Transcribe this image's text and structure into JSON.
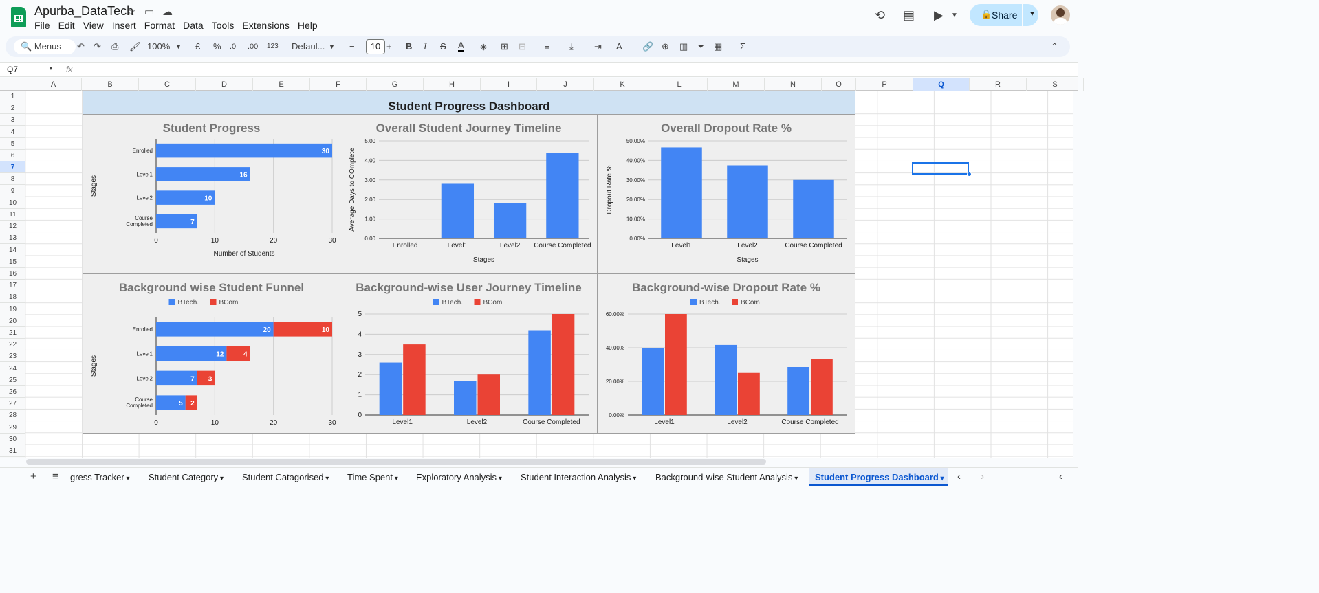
{
  "app": {
    "title": "Apurba_DataTech",
    "menu": [
      "File",
      "Edit",
      "View",
      "Insert",
      "Format",
      "Data",
      "Tools",
      "Extensions",
      "Help"
    ],
    "share_label": "Share"
  },
  "toolbar": {
    "search": "Menus",
    "zoom": "100%",
    "currency": "£",
    "percent": "%",
    "dec_down": ".0",
    "dec_up": ".00",
    "numfmt": "123",
    "font": "Defaul...",
    "font_size": "10"
  },
  "formula": {
    "cell": "Q7",
    "fx": "fx"
  },
  "columns": [
    "A",
    "B",
    "C",
    "D",
    "E",
    "F",
    "G",
    "H",
    "I",
    "J",
    "K",
    "L",
    "M",
    "N",
    "O",
    "P",
    "Q",
    "R",
    "S"
  ],
  "rows": [
    "1",
    "2",
    "3",
    "4",
    "5",
    "6",
    "7",
    "8",
    "9",
    "10",
    "11",
    "12",
    "13",
    "14",
    "15",
    "16",
    "17",
    "18",
    "19",
    "20",
    "21",
    "22",
    "23",
    "24",
    "25",
    "26",
    "27",
    "28",
    "29",
    "30",
    "31"
  ],
  "selected": {
    "col": "Q",
    "row": "7"
  },
  "dashboard_title": "Student Progress Dashboard",
  "tabs": [
    "gress Tracker",
    "Student Category",
    "Student Catagorised",
    "Time Spent",
    "Exploratory Analysis",
    "Student Interaction Analysis",
    "Background-wise Student Analysis",
    "Student Progress Dashboard"
  ],
  "active_tab": "Student Progress Dashboard",
  "colors": {
    "btech": "#4285f4",
    "bcom": "#ea4335",
    "accent": "#0b57d0"
  },
  "chart_data": [
    {
      "id": "c1",
      "type": "bar",
      "orientation": "horizontal",
      "title": "Student Progress",
      "categories": [
        "Enrolled",
        "Level1",
        "Level2",
        "Course Completed"
      ],
      "values": [
        30,
        16,
        10,
        7
      ],
      "xlabel": "Number of Students",
      "ylabel": "Stages",
      "xlim": [
        0,
        30
      ],
      "ticks": [
        "0",
        "10",
        "20",
        "30"
      ],
      "data_labels": true
    },
    {
      "id": "c2",
      "type": "bar",
      "title": "Overall Student Journey Timeline",
      "categories": [
        "Enrolled",
        "Level1",
        "Level2",
        "Course Completed"
      ],
      "values": [
        0,
        2.8,
        1.8,
        4.4
      ],
      "xlabel": "Stages",
      "ylabel": "Average Days to COmplete",
      "ylim": [
        0,
        5
      ],
      "ticks": [
        "0.00",
        "1.00",
        "2.00",
        "3.00",
        "4.00",
        "5.00"
      ]
    },
    {
      "id": "c3",
      "type": "bar",
      "title": "Overall Dropout Rate %",
      "categories": [
        "Level1",
        "Level2",
        "Course Completed"
      ],
      "values": [
        46.67,
        37.5,
        30.0
      ],
      "xlabel": "Stages",
      "ylabel": "Dropout Rate %",
      "ylim": [
        0,
        50
      ],
      "ticks": [
        "0.00%",
        "10.00%",
        "20.00%",
        "30.00%",
        "40.00%",
        "50.00%"
      ]
    },
    {
      "id": "c4",
      "type": "bar",
      "orientation": "horizontal",
      "stacked": true,
      "title": "Background wise Student Funnel",
      "categories": [
        "Enrolled",
        "Level1",
        "Level2",
        "Course Completed"
      ],
      "series": [
        {
          "name": "BTech.",
          "values": [
            20,
            12,
            7,
            5
          ]
        },
        {
          "name": "BCom",
          "values": [
            10,
            4,
            3,
            2
          ]
        }
      ],
      "ylabel": "Stages",
      "xlim": [
        0,
        30
      ],
      "ticks": [
        "0",
        "10",
        "20",
        "30"
      ],
      "legend": "top",
      "data_labels": true
    },
    {
      "id": "c5",
      "type": "bar",
      "title": "Background-wise User Journey Timeline",
      "categories": [
        "Level1",
        "Level2",
        "Course Completed"
      ],
      "series": [
        {
          "name": "BTech.",
          "values": [
            2.6,
            1.7,
            4.2
          ]
        },
        {
          "name": "BCom",
          "values": [
            3.5,
            2.0,
            5.0
          ]
        }
      ],
      "ylim": [
        0,
        5
      ],
      "ticks": [
        "0",
        "1",
        "2",
        "3",
        "4",
        "5"
      ],
      "legend": "top"
    },
    {
      "id": "c6",
      "type": "bar",
      "title": "Background-wise Dropout Rate %",
      "categories": [
        "Level1",
        "Level2",
        "Course Completed"
      ],
      "series": [
        {
          "name": "BTech.",
          "values": [
            40.0,
            41.67,
            28.57
          ]
        },
        {
          "name": "BCom",
          "values": [
            60.0,
            25.0,
            33.33
          ]
        }
      ],
      "xlabel": "Stages",
      "ylim": [
        0,
        60
      ],
      "ticks": [
        "0.00%",
        "20.00%",
        "40.00%",
        "60.00%"
      ],
      "legend": "top"
    }
  ]
}
